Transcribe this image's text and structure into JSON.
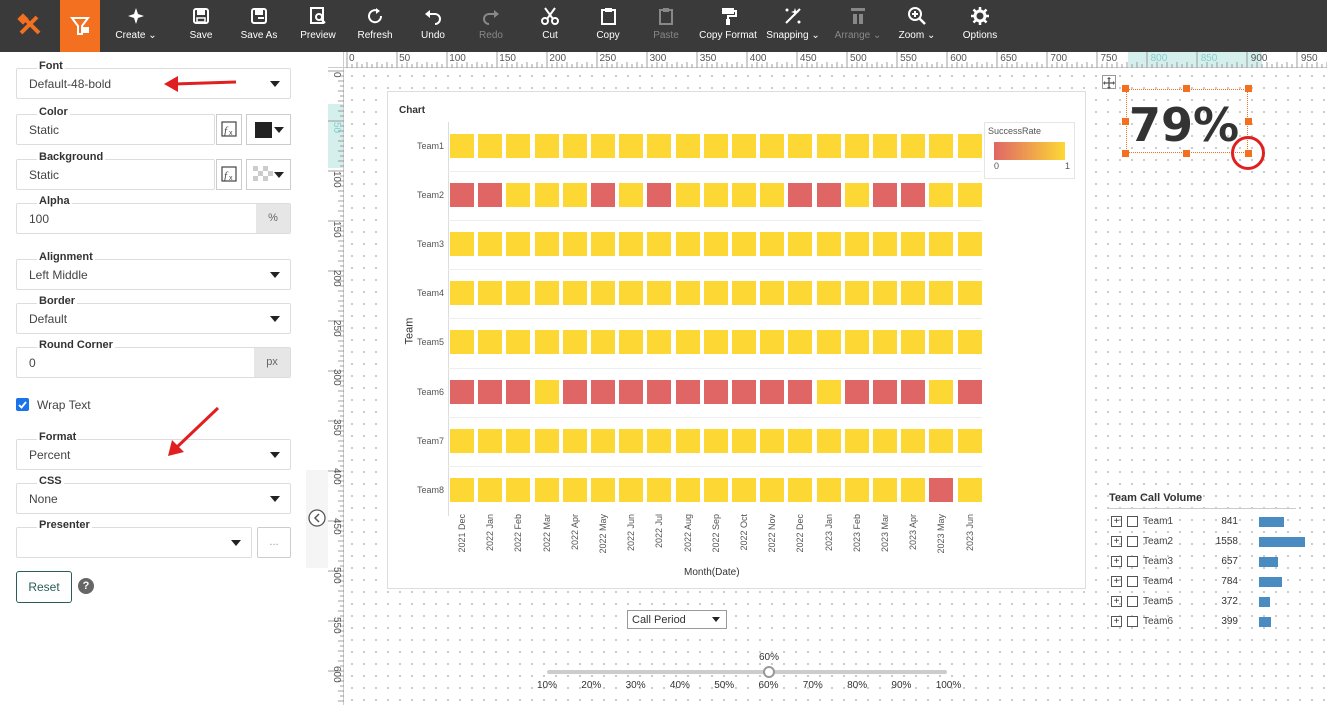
{
  "toolbar": {
    "create": "Create",
    "save": "Save",
    "save_as": "Save As",
    "preview": "Preview",
    "refresh": "Refresh",
    "undo": "Undo",
    "redo": "Redo",
    "cut": "Cut",
    "copy": "Copy",
    "paste": "Paste",
    "copy_format": "Copy Format",
    "snapping": "Snapping",
    "arrange": "Arrange",
    "zoom": "Zoom",
    "options": "Options"
  },
  "panel": {
    "font": {
      "label": "Font",
      "value": "Default-48-bold"
    },
    "color": {
      "label": "Color",
      "value": "Static",
      "swatch": "#222222"
    },
    "background": {
      "label": "Background",
      "value": "Static"
    },
    "alpha": {
      "label": "Alpha",
      "value": "100",
      "unit": "%"
    },
    "alignment": {
      "label": "Alignment",
      "value": "Left Middle"
    },
    "border": {
      "label": "Border",
      "value": "Default"
    },
    "round_corner": {
      "label": "Round Corner",
      "value": "0",
      "unit": "px"
    },
    "wrap_text": {
      "label": "Wrap Text",
      "checked": true
    },
    "format": {
      "label": "Format",
      "value": "Percent"
    },
    "css": {
      "label": "CSS",
      "value": "None"
    },
    "presenter": {
      "label": "Presenter",
      "value": "",
      "more": "..."
    },
    "reset": "Reset",
    "help": "?"
  },
  "ruler": {
    "h": [
      "0",
      "50",
      "100",
      "150",
      "200",
      "250",
      "300",
      "350",
      "400",
      "450",
      "500",
      "550",
      "600",
      "650",
      "700",
      "750",
      "800",
      "850",
      "900",
      "950"
    ],
    "v": [
      "0",
      "50",
      "100",
      "150",
      "200",
      "250",
      "300",
      "350",
      "400",
      "450",
      "500",
      "550",
      "600"
    ]
  },
  "chart": {
    "title": "Chart",
    "ylabel": "Team",
    "xlabel": "Month(Date)",
    "legend": {
      "title": "SuccessRate",
      "min": "0",
      "max": "1",
      "color_low": "#e06666",
      "color_high": "#fdd835"
    }
  },
  "chart_data": {
    "type": "heatmap",
    "title": "Chart",
    "xlabel": "Month(Date)",
    "ylabel": "Team",
    "categories_x": [
      "2021 Dec",
      "2022 Jan",
      "2022 Feb",
      "2022 Mar",
      "2022 Apr",
      "2022 May",
      "2022 Jun",
      "2022 Jul",
      "2022 Aug",
      "2022 Sep",
      "2022 Oct",
      "2022 Nov",
      "2022 Dec",
      "2023 Jan",
      "2023 Feb",
      "2023 Mar",
      "2023 Apr",
      "2023 May",
      "2023 Jun"
    ],
    "categories_y": [
      "Team1",
      "Team2",
      "Team3",
      "Team4",
      "Team5",
      "Team6",
      "Team7",
      "Team8"
    ],
    "color_low": "#e06666",
    "color_high": "#fdd835",
    "value_range": [
      0,
      1
    ],
    "values": [
      [
        1,
        1,
        1,
        1,
        1,
        1,
        1,
        1,
        1,
        1,
        1,
        1,
        1,
        1,
        1,
        1,
        1,
        1,
        1
      ],
      [
        0,
        0,
        1,
        1,
        1,
        0,
        1,
        0,
        1,
        1,
        1,
        1,
        0,
        0,
        1,
        0,
        0,
        1,
        1
      ],
      [
        1,
        1,
        1,
        1,
        1,
        1,
        1,
        1,
        1,
        1,
        1,
        1,
        1,
        1,
        1,
        1,
        1,
        1,
        1
      ],
      [
        1,
        1,
        1,
        1,
        1,
        1,
        1,
        1,
        1,
        1,
        1,
        1,
        1,
        1,
        1,
        1,
        1,
        1,
        1
      ],
      [
        1,
        1,
        1,
        1,
        1,
        1,
        1,
        1,
        1,
        1,
        1,
        1,
        1,
        1,
        1,
        1,
        1,
        1,
        1
      ],
      [
        0,
        0,
        0,
        1,
        0,
        0,
        0,
        0,
        0,
        0,
        0,
        0,
        0,
        1,
        0,
        0,
        0,
        1,
        0
      ],
      [
        1,
        1,
        1,
        1,
        1,
        1,
        1,
        1,
        1,
        1,
        1,
        1,
        1,
        1,
        1,
        1,
        1,
        1,
        1
      ],
      [
        1,
        1,
        1,
        1,
        1,
        1,
        1,
        1,
        1,
        1,
        1,
        1,
        1,
        1,
        1,
        1,
        1,
        0,
        1
      ]
    ]
  },
  "kpi": {
    "value": "79%"
  },
  "call_volume": {
    "title": "Team Call Volume",
    "rows": [
      {
        "team": "Team1",
        "value": "841"
      },
      {
        "team": "Team2",
        "value": "1558"
      },
      {
        "team": "Team3",
        "value": "657"
      },
      {
        "team": "Team4",
        "value": "784"
      },
      {
        "team": "Team5",
        "value": "372"
      },
      {
        "team": "Team6",
        "value": "399"
      }
    ],
    "max": 1558,
    "bar_color": "#4a8bc2"
  },
  "call_period": {
    "value": "Call Period"
  },
  "slider": {
    "value": "60%",
    "fraction": 0.555,
    "ticks": [
      "10%",
      "20%",
      "30%",
      "40%",
      "50%",
      "60%",
      "70%",
      "80%",
      "90%",
      "100%"
    ]
  },
  "colors": {
    "toolbar_bg": "#3a3a3a",
    "accent": "#f37021",
    "annotation": "#e02020"
  }
}
